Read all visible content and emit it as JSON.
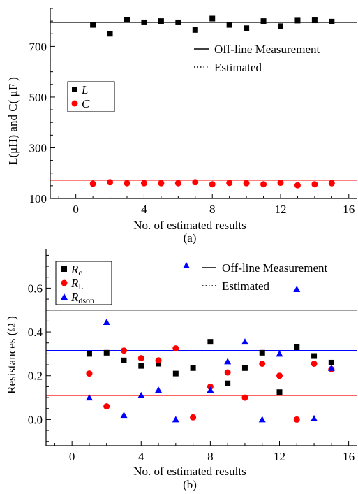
{
  "chart_data": [
    {
      "type": "scatter",
      "caption": "(a)",
      "xlabel": "No. of estimated results",
      "ylabel": "L(μH) and C( μF )",
      "xlim": [
        -1.5,
        16.5
      ],
      "ylim": [
        100,
        850
      ],
      "xticks": [
        0,
        4,
        8,
        12,
        16
      ],
      "yticks": [
        100,
        300,
        500,
        700
      ],
      "grid": false,
      "reference_lines": [
        {
          "label": "Off-line Measurement",
          "y": 795,
          "color": "#000000"
        },
        {
          "label": "Off-line Measurement",
          "y": 172,
          "color": "#ff0000"
        }
      ],
      "line_legend": [
        {
          "label": "Off-line Measurement",
          "style": "solid"
        },
        {
          "label": "Estimated",
          "style": "dotted"
        }
      ],
      "series": [
        {
          "name": "L",
          "marker": "square",
          "color": "#000000",
          "x": [
            1,
            2,
            3,
            4,
            5,
            6,
            7,
            8,
            9,
            10,
            11,
            12,
            13,
            14,
            15
          ],
          "y": [
            785,
            750,
            805,
            795,
            800,
            795,
            765,
            810,
            785,
            772,
            800,
            780,
            802,
            803,
            798
          ]
        },
        {
          "name": "C",
          "marker": "circle",
          "color": "#ff0000",
          "x": [
            1,
            2,
            3,
            4,
            5,
            6,
            7,
            8,
            9,
            10,
            11,
            12,
            13,
            14,
            15
          ],
          "y": [
            158,
            164,
            160,
            160,
            160,
            160,
            164,
            156,
            161,
            160,
            156,
            162,
            152,
            156,
            160
          ]
        }
      ]
    },
    {
      "type": "scatter",
      "caption": "(b)",
      "xlabel": "No. of estimated results",
      "ylabel": "Resistances (Ω )",
      "xlim": [
        -1.5,
        16.5
      ],
      "ylim": [
        -0.12,
        0.78
      ],
      "xticks": [
        0,
        4,
        8,
        12,
        16
      ],
      "yticks": [
        0.0,
        0.2,
        0.4,
        0.6
      ],
      "ytick_labels": [
        "0.0",
        "0.2",
        "0.4",
        "0.6"
      ],
      "grid": false,
      "reference_lines": [
        {
          "label": "Off-line Measurement",
          "y": 0.5,
          "color": "#000000"
        },
        {
          "label": "Off-line Measurement",
          "y": 0.315,
          "color": "#0000ff"
        },
        {
          "label": "Off-line Measurement",
          "y": 0.11,
          "color": "#ff0000"
        }
      ],
      "line_legend": [
        {
          "label": "Off-line Measurement",
          "style": "solid"
        },
        {
          "label": "Estimated",
          "style": "dotted"
        }
      ],
      "series": [
        {
          "name": "Rc",
          "marker": "square",
          "color": "#000000",
          "x": [
            1,
            2,
            3,
            4,
            5,
            6,
            7,
            8,
            9,
            10,
            11,
            12,
            13,
            14,
            15
          ],
          "y": [
            0.3,
            0.305,
            0.27,
            0.245,
            0.255,
            0.21,
            0.235,
            0.355,
            0.165,
            0.235,
            0.305,
            0.125,
            0.33,
            0.29,
            0.26
          ]
        },
        {
          "name": "RL",
          "marker": "circle",
          "color": "#ff0000",
          "x": [
            1,
            2,
            3,
            4,
            5,
            6,
            7,
            8,
            9,
            10,
            11,
            12,
            13,
            14,
            15
          ],
          "y": [
            0.21,
            0.06,
            0.315,
            0.28,
            0.27,
            0.325,
            0.01,
            0.15,
            0.215,
            0.1,
            0.255,
            0.2,
            0.0,
            0.255,
            0.23
          ]
        },
        {
          "name": "Rdson",
          "marker": "triangle",
          "color": "#0000ff",
          "x": [
            1,
            2,
            3,
            4,
            5,
            6,
            7,
            8,
            9,
            10,
            11,
            12,
            13,
            14,
            15
          ],
          "y": [
            0.1,
            0.445,
            0.02,
            0.11,
            0.135,
            0.0,
            null,
            0.135,
            0.265,
            0.355,
            0.0,
            0.3,
            0.595,
            0.005,
            0.235
          ]
        }
      ]
    }
  ]
}
